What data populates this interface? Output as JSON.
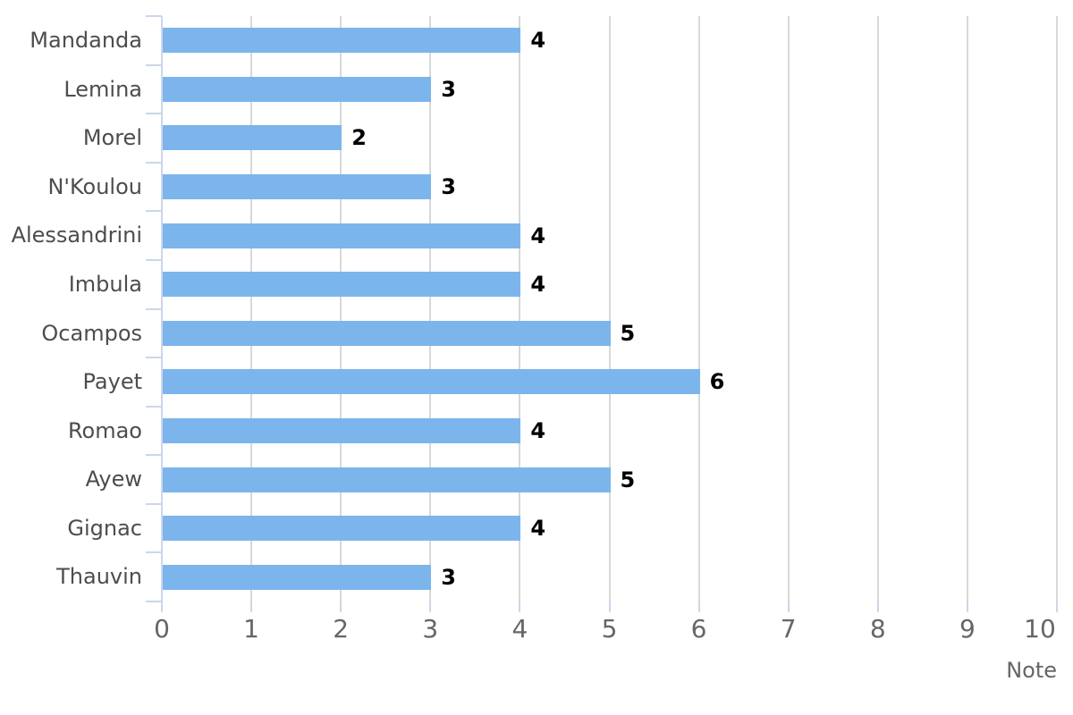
{
  "chart_data": {
    "type": "bar",
    "orientation": "horizontal",
    "title": "",
    "categories": [
      "Mandanda",
      "Lemina",
      "Morel",
      "N'Koulou",
      "Alessandrini",
      "Imbula",
      "Ocampos",
      "Payet",
      "Romao",
      "Ayew",
      "Gignac",
      "Thauvin"
    ],
    "series": [
      {
        "name": "Note",
        "values": [
          4,
          3,
          2,
          3,
          4,
          4,
          5,
          6,
          4,
          5,
          4,
          3
        ]
      }
    ],
    "data_labels": [
      4,
      3,
      2,
      3,
      4,
      4,
      5,
      6,
      4,
      5,
      4,
      3
    ],
    "xlabel": "Note",
    "xlim": [
      0,
      10
    ],
    "x_ticks": [
      "0",
      "1",
      "2",
      "3",
      "4",
      "5",
      "6",
      "7",
      "8",
      "9",
      "10"
    ],
    "grid": true,
    "legend": "none",
    "colors": {
      "bar": "#7cb5ec",
      "gridline": "#d8d8d8",
      "axis_line": "#ccd6eb",
      "axis_tick": "#ccd6eb",
      "category_label": "#4d4d4d",
      "tick_label": "#666666",
      "data_label": "#000000",
      "axis_title": "#666666",
      "background": "#ffffff"
    }
  }
}
